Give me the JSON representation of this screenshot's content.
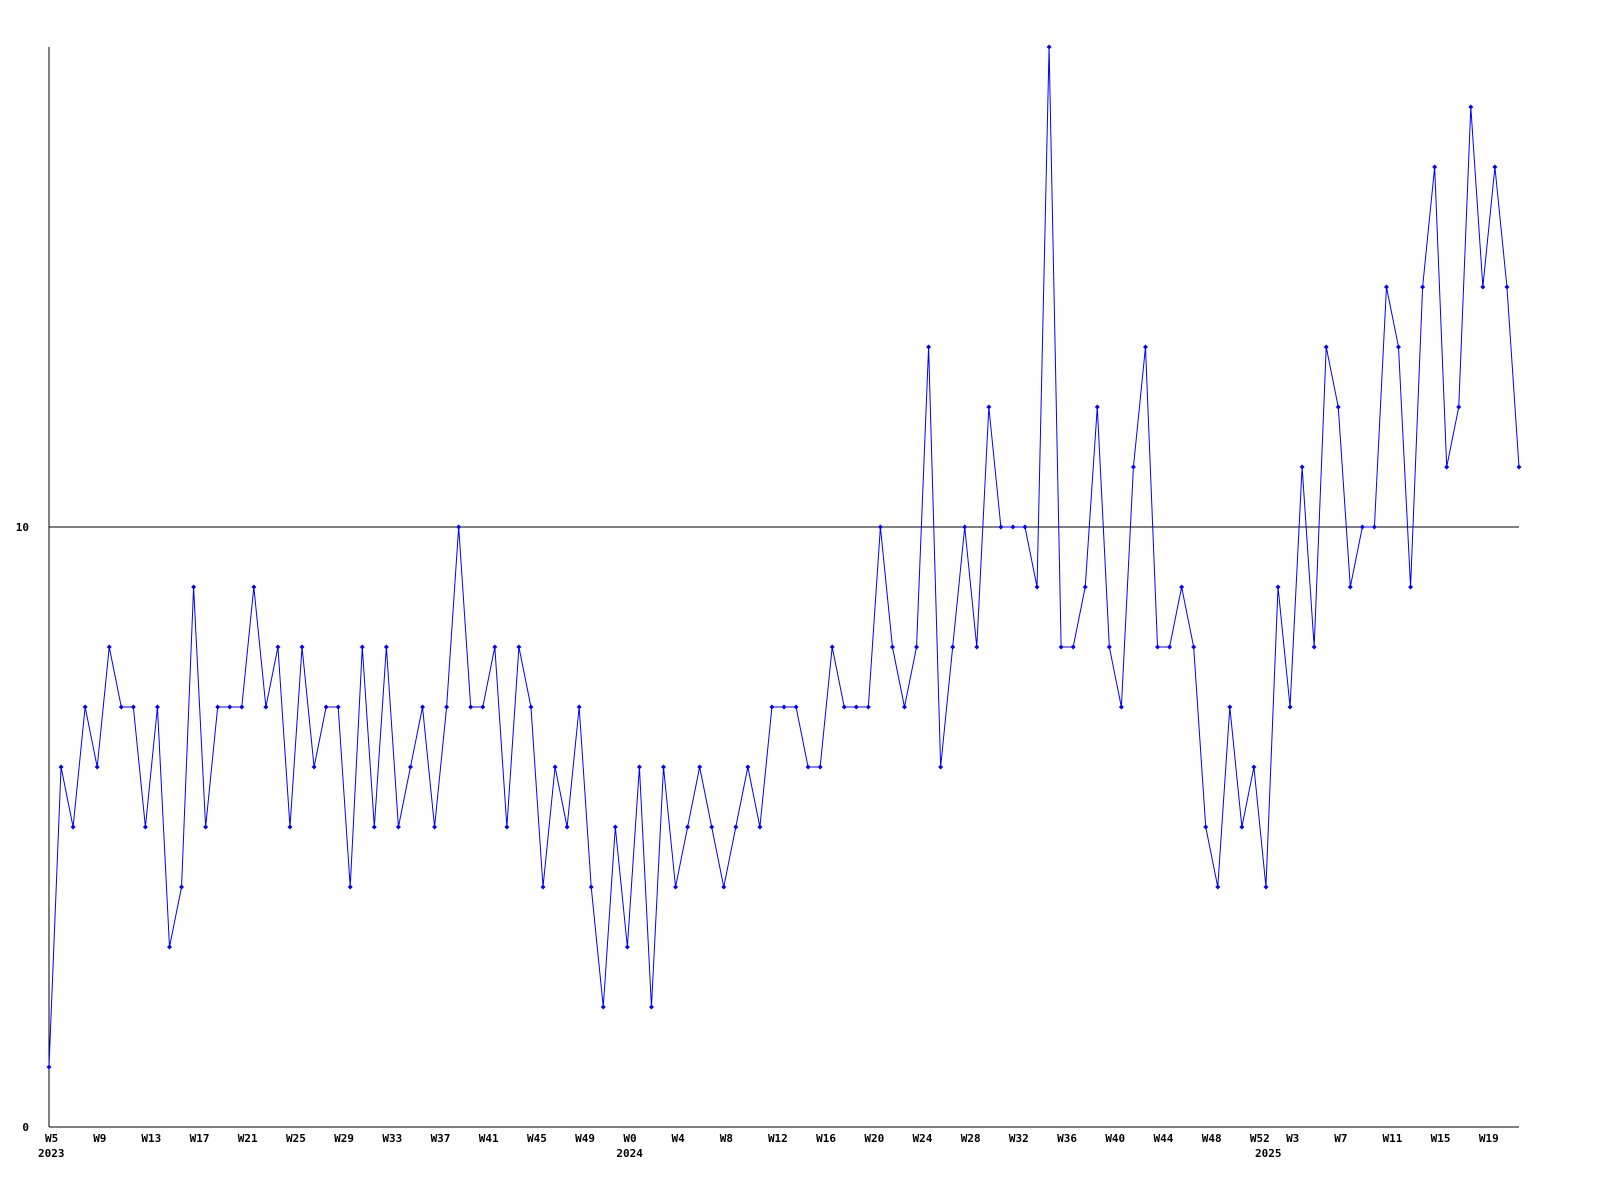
{
  "chart_data": {
    "type": "line",
    "categories": [
      "W5",
      null,
      null,
      null,
      "W9",
      null,
      null,
      null,
      "W13",
      null,
      null,
      null,
      "W17",
      null,
      null,
      null,
      "W21",
      null,
      null,
      null,
      "W25",
      null,
      null,
      null,
      "W29",
      null,
      null,
      null,
      "W33",
      null,
      null,
      null,
      "W37",
      null,
      null,
      null,
      "W41",
      null,
      null,
      null,
      "W45",
      null,
      null,
      null,
      "W49",
      null,
      null,
      null,
      "W0",
      null,
      null,
      null,
      "W4",
      null,
      null,
      null,
      "W8",
      null,
      null,
      null,
      "W12",
      null,
      null,
      null,
      "W16",
      null,
      null,
      null,
      "W20",
      null,
      null,
      null,
      "W24",
      null,
      null,
      null,
      "W28",
      null,
      null,
      null,
      "W32",
      null,
      null,
      null,
      "W36",
      null,
      null,
      null,
      "W40",
      null,
      null,
      null,
      "W44",
      null,
      null,
      null,
      "W48",
      null,
      null,
      null,
      "W52",
      null,
      null,
      "W3",
      null,
      null,
      null,
      "W7",
      null,
      null,
      null,
      "W11",
      null,
      null,
      null,
      "W15",
      null,
      null,
      null,
      "W19",
      null,
      null,
      null
    ],
    "years": [
      "2023",
      null,
      null,
      null,
      null,
      null,
      null,
      null,
      null,
      null,
      null,
      null,
      null,
      null,
      null,
      null,
      null,
      null,
      null,
      null,
      null,
      null,
      null,
      null,
      null,
      null,
      null,
      null,
      null,
      null,
      null,
      null,
      null,
      null,
      null,
      null,
      null,
      null,
      null,
      null,
      null,
      null,
      null,
      null,
      null,
      null,
      null,
      null,
      "2024",
      null,
      null,
      null,
      null,
      null,
      null,
      null,
      null,
      null,
      null,
      null,
      null,
      null,
      null,
      null,
      null,
      null,
      null,
      null,
      null,
      null,
      null,
      null,
      null,
      null,
      null,
      null,
      null,
      null,
      null,
      null,
      null,
      null,
      null,
      null,
      null,
      null,
      null,
      null,
      null,
      null,
      null,
      null,
      null,
      null,
      null,
      null,
      null,
      null,
      null,
      null,
      null,
      "2025",
      null,
      null,
      null,
      null,
      null,
      null,
      null,
      null,
      null,
      null,
      null,
      null,
      null,
      null,
      null,
      null,
      null,
      null,
      null,
      null,
      null
    ],
    "series": [
      {
        "color": "#0000ff",
        "values": [
          1,
          6,
          5,
          7,
          6,
          8,
          7,
          7,
          5,
          7,
          3,
          4,
          9,
          5,
          7,
          7,
          7,
          9,
          7,
          8,
          5,
          8,
          6,
          7,
          7,
          4,
          8,
          5,
          8,
          5,
          6,
          7,
          5,
          7,
          10,
          7,
          7,
          8,
          5,
          8,
          7,
          4,
          6,
          5,
          7,
          4,
          2,
          5,
          3,
          6,
          2,
          6,
          4,
          5,
          6,
          5,
          4,
          5,
          6,
          5,
          7,
          7,
          7,
          6,
          6,
          8,
          7,
          7,
          7,
          10,
          8,
          7,
          8,
          13,
          6,
          8,
          10,
          8,
          12,
          10,
          10,
          10,
          9,
          18,
          8,
          8,
          9,
          12,
          8,
          7,
          11,
          13,
          8,
          8,
          9,
          8,
          5,
          4,
          7,
          5,
          6,
          4,
          9,
          7,
          11,
          8,
          13,
          12,
          9,
          10,
          10,
          14,
          13,
          9,
          14,
          16,
          11,
          12,
          17,
          14,
          16,
          14,
          11
        ]
      }
    ],
    "ylim": [
      0,
      18
    ],
    "yticks": [
      0,
      10
    ],
    "grid": true
  }
}
